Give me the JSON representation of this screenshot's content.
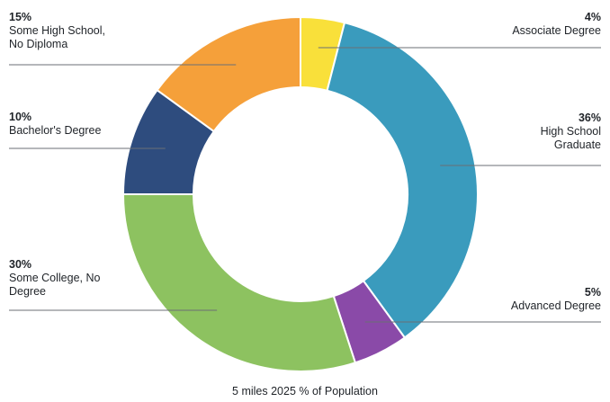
{
  "chart_data": {
    "type": "pie",
    "donut": true,
    "title": "5 miles 2025 % of Population",
    "slices": [
      {
        "label": "Associate Degree",
        "pct_label": "4%",
        "value": 4,
        "color": "#f9e03a"
      },
      {
        "label": "High School\nGraduate",
        "pct_label": "36%",
        "value": 36,
        "color": "#3a9bbd"
      },
      {
        "label": "Advanced Degree",
        "pct_label": "5%",
        "value": 5,
        "color": "#8a4aa8"
      },
      {
        "label": "Some College, No\nDegree",
        "pct_label": "30%",
        "value": 30,
        "color": "#8dc260"
      },
      {
        "label": "Bachelor's Degree",
        "pct_label": "10%",
        "value": 10,
        "color": "#2e4c7e"
      },
      {
        "label": "Some High School,\nNo Diploma",
        "pct_label": "15%",
        "value": 15,
        "color": "#f5a03a"
      }
    ],
    "legend": "none"
  }
}
